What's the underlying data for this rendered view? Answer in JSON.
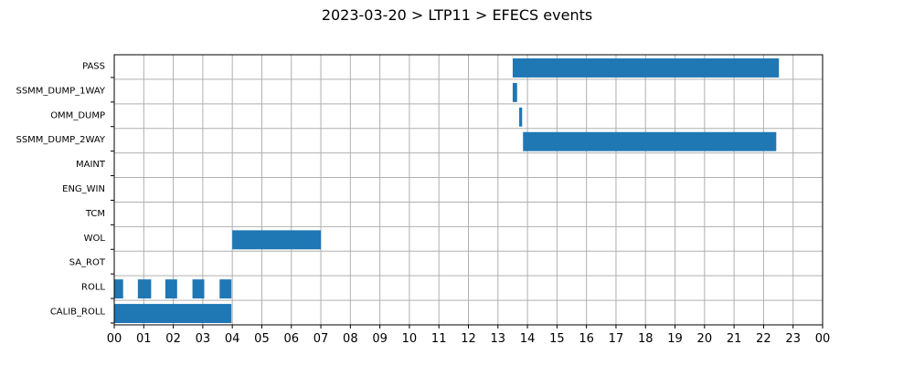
{
  "chart_data": {
    "type": "timeline",
    "title": "2023-03-20 > LTP11 > EFECS events",
    "xlabel": "",
    "ylabel": "",
    "xlim": [
      0,
      24
    ],
    "x_tick_labels": [
      "00",
      "01",
      "02",
      "03",
      "04",
      "05",
      "06",
      "07",
      "08",
      "09",
      "10",
      "11",
      "12",
      "13",
      "14",
      "15",
      "16",
      "17",
      "18",
      "19",
      "20",
      "21",
      "22",
      "23",
      "00"
    ],
    "grid": true,
    "color": "#1f77b4",
    "categories": [
      "PASS",
      "SSMM_DUMP_1WAY",
      "OMM_DUMP",
      "SSMM_DUMP_2WAY",
      "MAINT",
      "ENG_WIN",
      "TCM",
      "WOL",
      "SA_ROT",
      "ROLL",
      "CALIB_ROLL"
    ],
    "events": [
      {
        "category": "PASS",
        "start": 13.5,
        "end": 22.52
      },
      {
        "category": "SSMM_DUMP_1WAY",
        "start": 13.5,
        "end": 13.65
      },
      {
        "category": "OMM_DUMP",
        "start": 13.72,
        "end": 13.82
      },
      {
        "category": "SSMM_DUMP_2WAY",
        "start": 13.85,
        "end": 22.43
      },
      {
        "category": "WOL",
        "start": 4.0,
        "end": 7.0
      },
      {
        "category": "ROLL",
        "start": 0.0,
        "end": 0.3
      },
      {
        "category": "ROLL",
        "start": 0.8,
        "end": 1.25
      },
      {
        "category": "ROLL",
        "start": 1.73,
        "end": 2.13
      },
      {
        "category": "ROLL",
        "start": 2.65,
        "end": 3.05
      },
      {
        "category": "ROLL",
        "start": 3.57,
        "end": 3.97
      },
      {
        "category": "CALIB_ROLL",
        "start": 0.0,
        "end": 3.97
      }
    ]
  }
}
